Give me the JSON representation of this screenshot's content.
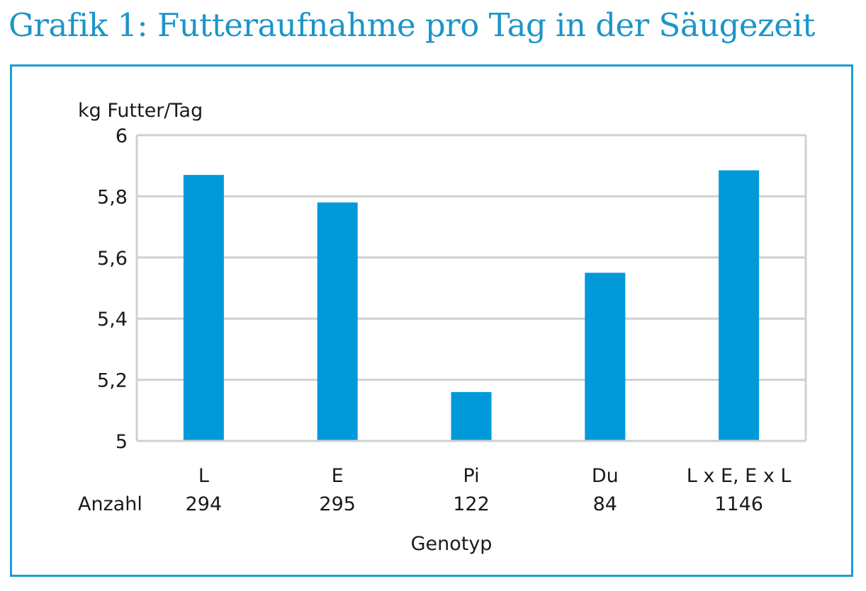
{
  "heading": "Grafik 1: Futteraufnahme pro Tag in der Säugezeit",
  "colors": {
    "heading": "#1c95c9",
    "frame": "#1c9dd6",
    "bar": "#009ada",
    "grid": "#d0d0d0"
  },
  "chart_data": {
    "type": "bar",
    "ylabel": "kg Futter/Tag",
    "xlabel": "Genotyp",
    "ylim": [
      5,
      6
    ],
    "yticks": [
      5,
      5.2,
      5.4,
      5.6,
      5.8,
      6
    ],
    "ytick_labels": [
      "5",
      "5,2",
      "5,4",
      "5,6",
      "5,8",
      "6"
    ],
    "grid": true,
    "categories": [
      "L",
      "E",
      "Pi",
      "Du",
      "L x E, E x L"
    ],
    "values": [
      5.87,
      5.78,
      5.16,
      5.55,
      5.885
    ],
    "count_label": "Anzahl",
    "counts": [
      "294",
      "295",
      "122",
      "84",
      "1146"
    ]
  }
}
